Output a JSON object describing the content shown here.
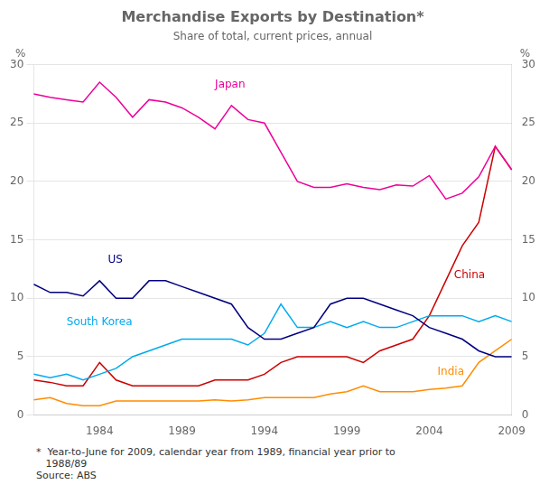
{
  "chart_data": {
    "type": "line",
    "title": "Merchandise Exports by Destination*",
    "subtitle": "Share of total, current prices, annual",
    "ylabel": "%",
    "y2label": "%",
    "footnote": "*  Year-to-June for 2009, calendar year from 1989, financial year prior to\n   1988/89\nSource: ABS",
    "x": [
      1980,
      1981,
      1982,
      1983,
      1984,
      1985,
      1986,
      1987,
      1988,
      1989,
      1990,
      1991,
      1992,
      1993,
      1994,
      1995,
      1996,
      1997,
      1998,
      1999,
      2000,
      2001,
      2002,
      2003,
      2004,
      2005,
      2006,
      2007,
      2008,
      2009
    ],
    "xlim": [
      1980,
      2009
    ],
    "xticks": [
      1984,
      1989,
      1994,
      1999,
      2004,
      2009
    ],
    "ylim": [
      0,
      30
    ],
    "yticks": [
      0,
      5,
      10,
      15,
      20,
      25,
      30
    ],
    "y2lim": [
      0,
      30
    ],
    "y2ticks": [
      0,
      5,
      10,
      15,
      20,
      25,
      30
    ],
    "grid": true,
    "series": [
      {
        "name": "Japan",
        "color": "#EE0099",
        "values": [
          27.5,
          27.2,
          27.0,
          26.8,
          28.5,
          27.2,
          25.5,
          27.0,
          26.8,
          26.3,
          25.5,
          24.5,
          26.5,
          25.3,
          25.0,
          22.5,
          20.0,
          19.5,
          19.5,
          19.8,
          19.5,
          19.3,
          19.7,
          19.6,
          20.5,
          18.5,
          19.0,
          20.4,
          23.0,
          21.0
        ]
      },
      {
        "name": "US",
        "color": "#000080",
        "values": [
          11.2,
          10.5,
          10.5,
          10.2,
          11.5,
          10.0,
          10.0,
          11.5,
          11.5,
          11.0,
          10.5,
          10.0,
          9.5,
          7.5,
          6.5,
          6.5,
          7.0,
          7.5,
          9.5,
          10.0,
          10.0,
          9.5,
          9.0,
          8.5,
          7.5,
          7.0,
          6.5,
          5.5,
          5.0,
          5.0
        ]
      },
      {
        "name": "South Korea",
        "color": "#00AAEE",
        "values": [
          3.5,
          3.2,
          3.5,
          3.0,
          3.5,
          4.0,
          5.0,
          5.5,
          6.0,
          6.5,
          6.5,
          6.5,
          6.5,
          6.0,
          7.0,
          9.5,
          7.5,
          7.5,
          8.0,
          7.5,
          8.0,
          7.5,
          7.5,
          8.0,
          8.5,
          8.5,
          8.5,
          8.0,
          8.5,
          8.0
        ]
      },
      {
        "name": "China",
        "color": "#CC0000",
        "values": [
          3.0,
          2.8,
          2.5,
          2.5,
          4.5,
          3.0,
          2.5,
          2.5,
          2.5,
          2.5,
          2.5,
          3.0,
          3.0,
          3.0,
          3.5,
          4.5,
          5.0,
          5.0,
          5.0,
          5.0,
          4.5,
          5.5,
          6.0,
          6.5,
          8.5,
          11.5,
          14.5,
          16.5,
          23.0,
          21.0
        ]
      },
      {
        "name": "India",
        "color": "#FF8C00",
        "values": [
          1.3,
          1.5,
          1.0,
          0.8,
          0.8,
          1.2,
          1.2,
          1.2,
          1.2,
          1.2,
          1.2,
          1.3,
          1.2,
          1.3,
          1.5,
          1.5,
          1.5,
          1.5,
          1.8,
          2.0,
          2.5,
          2.0,
          2.0,
          2.0,
          2.2,
          2.3,
          2.5,
          4.5,
          5.5,
          6.5
        ]
      }
    ],
    "annotations": [
      {
        "text": "Japan",
        "x": 1991.0,
        "y": 27.8,
        "color": "#EE0099"
      },
      {
        "text": "US",
        "x": 1984.5,
        "y": 12.8,
        "color": "#000080"
      },
      {
        "text": "South Korea",
        "x": 1982.0,
        "y": 7.5,
        "color": "#00AAEE"
      },
      {
        "text": "China",
        "x": 2005.5,
        "y": 11.5,
        "color": "#CC0000"
      },
      {
        "text": "India",
        "x": 2004.5,
        "y": 3.2,
        "color": "#FF8C00"
      }
    ]
  }
}
